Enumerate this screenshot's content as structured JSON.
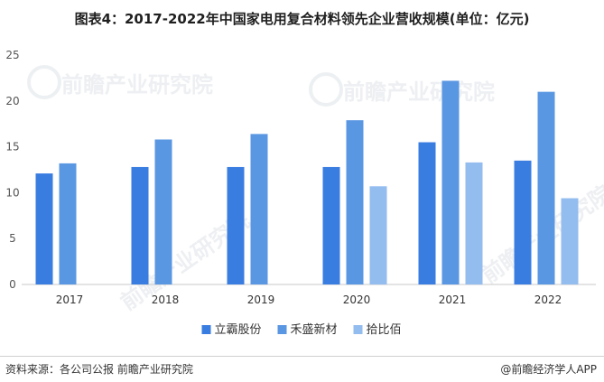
{
  "title": "图表4：2017-2022年中国家电用复合材料领先企业营收规模(单位：亿元)",
  "watermark_text": "前瞻产业研究院",
  "footer": {
    "source": "资料来源：各公司公报 前瞻产业研究院",
    "brand": "@前瞻经济学人APP"
  },
  "colors": {
    "series": [
      "#3a7de0",
      "#5a97e2",
      "#93bcef"
    ],
    "axis": "#c8c8c8",
    "tick_text": "#555555"
  },
  "chart_data": {
    "type": "bar",
    "categories": [
      "2017",
      "2018",
      "2019",
      "2020",
      "2021",
      "2022"
    ],
    "series": [
      {
        "name": "立霸股份",
        "values": [
          12.1,
          12.8,
          12.8,
          12.8,
          15.5,
          13.5
        ]
      },
      {
        "name": "禾盛新材",
        "values": [
          13.2,
          15.8,
          16.4,
          17.9,
          22.2,
          21.0
        ]
      },
      {
        "name": "拾比佰",
        "values": [
          null,
          null,
          null,
          10.7,
          13.3,
          9.4
        ]
      }
    ],
    "ylim": [
      0,
      25
    ],
    "yticks": [
      0,
      5,
      10,
      15,
      20,
      25
    ],
    "grid": false,
    "legend_position": "bottom"
  }
}
